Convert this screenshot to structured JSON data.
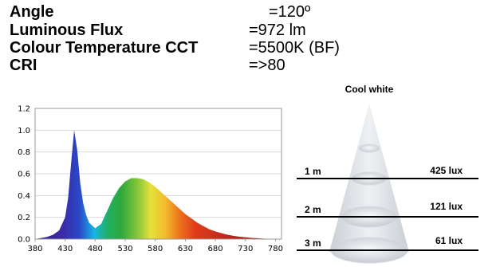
{
  "specs": [
    {
      "label": "Angle",
      "value": "=120º"
    },
    {
      "label": "Luminous Flux",
      "value": "=972 lm"
    },
    {
      "label": "Colour Temperature CCT",
      "value": "=5500K (BF)"
    },
    {
      "label": "CRI",
      "value": "=>80"
    }
  ],
  "chart_data": {
    "type": "area",
    "title": "",
    "xlabel": "",
    "ylabel": "",
    "xlim": [
      380,
      790
    ],
    "ylim": [
      0,
      1.2
    ],
    "x_ticks": [
      380,
      430,
      480,
      530,
      580,
      630,
      680,
      730,
      780
    ],
    "y_ticks": [
      "0.0",
      "0.2",
      "0.4",
      "0.6",
      "0.8",
      "1.0",
      "1.2"
    ],
    "grid": "horizontal",
    "fill": "visible-spectrum",
    "series": [
      {
        "x": [
          380,
          390,
          400,
          410,
          420,
          430,
          435,
          440,
          445,
          450,
          455,
          460,
          465,
          470,
          480,
          490,
          500,
          510,
          520,
          530,
          540,
          550,
          560,
          570,
          580,
          590,
          600,
          610,
          620,
          630,
          640,
          650,
          660,
          670,
          680,
          690,
          700,
          710,
          720,
          730,
          740,
          750,
          760,
          770,
          780,
          790
        ],
        "y": [
          0.0,
          0.01,
          0.02,
          0.04,
          0.08,
          0.2,
          0.38,
          0.7,
          1.0,
          0.82,
          0.52,
          0.33,
          0.22,
          0.15,
          0.1,
          0.14,
          0.26,
          0.38,
          0.47,
          0.53,
          0.56,
          0.56,
          0.55,
          0.52,
          0.48,
          0.43,
          0.38,
          0.33,
          0.28,
          0.23,
          0.19,
          0.15,
          0.12,
          0.09,
          0.07,
          0.055,
          0.04,
          0.03,
          0.022,
          0.016,
          0.011,
          0.008,
          0.005,
          0.003,
          0.002,
          0.0
        ]
      }
    ]
  },
  "cone": {
    "title": "Cool white",
    "levels": [
      {
        "distance": "1 m",
        "lux": "425 lux"
      },
      {
        "distance": "2 m",
        "lux": "121 lux"
      },
      {
        "distance": "3 m",
        "lux": "61 lux"
      }
    ]
  }
}
